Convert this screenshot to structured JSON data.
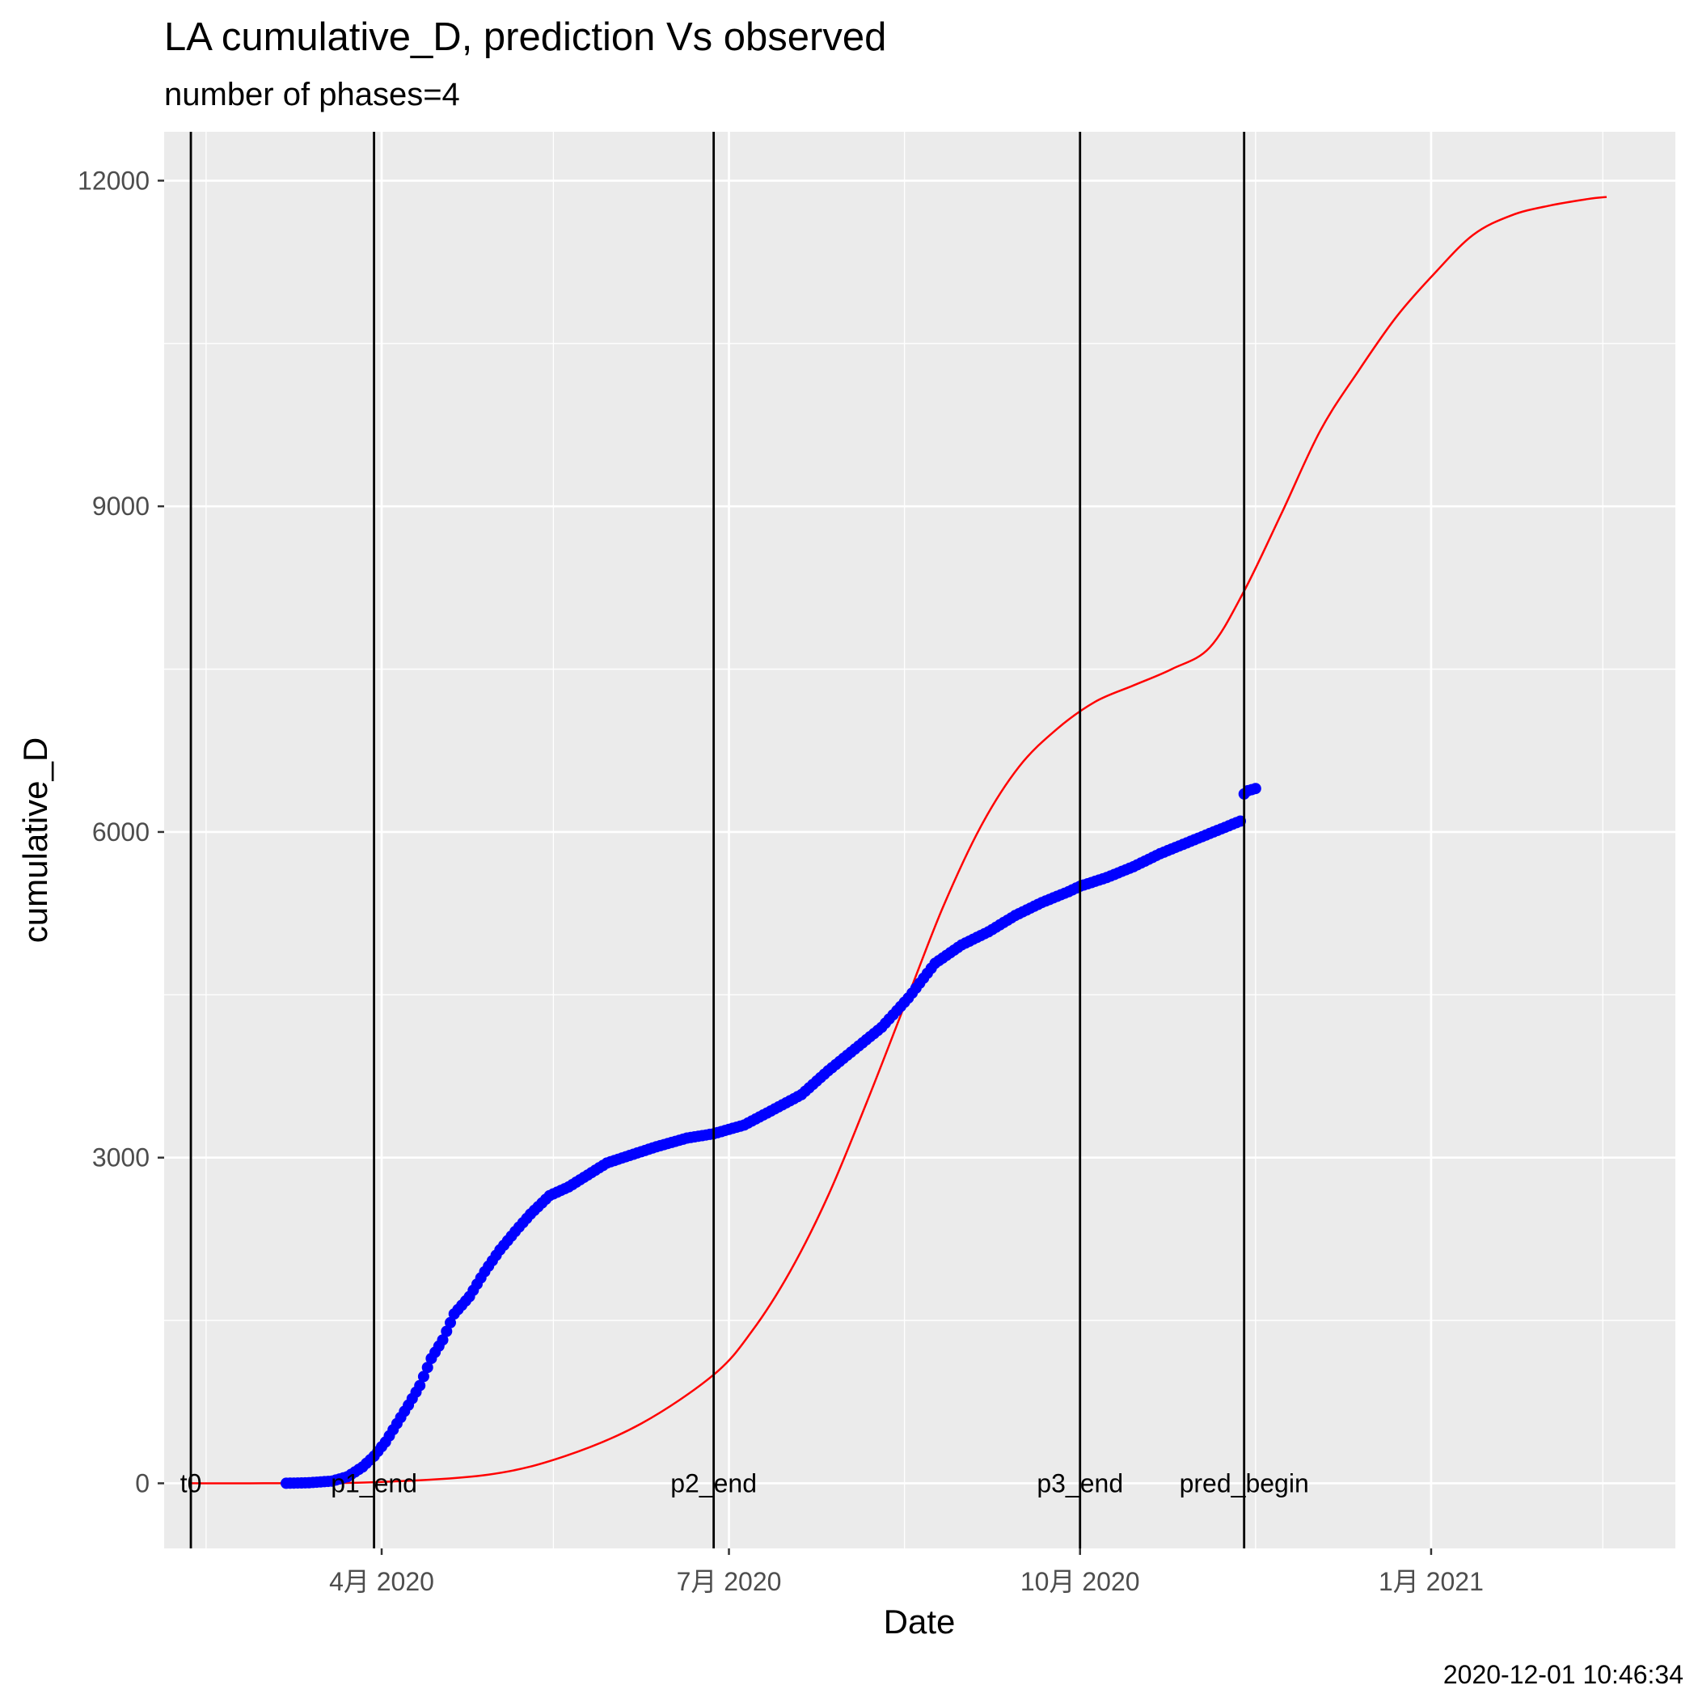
{
  "chart_data": {
    "type": "line",
    "title": "LA cumulative_D,  prediction Vs observed",
    "subtitle": "number of phases=4",
    "xlabel": "Date",
    "ylabel": "cumulative_D",
    "caption": "2020-12-01 10:46:34",
    "x_range": [
      "2020-02-04",
      "2021-03-06"
    ],
    "ylim": [
      -600,
      12450
    ],
    "y_ticks": [
      0,
      3000,
      6000,
      9000,
      12000
    ],
    "y_minor_ticks": [
      1500,
      4500,
      7500,
      10500
    ],
    "x_ticks": [
      {
        "date": "2020-04-01",
        "label": "4月 2020"
      },
      {
        "date": "2020-07-01",
        "label": "7月 2020"
      },
      {
        "date": "2020-10-01",
        "label": "10月 2020"
      },
      {
        "date": "2021-01-01",
        "label": "1月 2021"
      }
    ],
    "x_minor_ticks": [
      "2020-02-15",
      "2020-05-16",
      "2020-08-16",
      "2020-11-16",
      "2021-02-15"
    ],
    "grid": true,
    "colors": {
      "panel": "#ebebeb",
      "grid": "#ffffff",
      "observed": "#0000ff",
      "prediction": "#ff0000",
      "phase_line": "#000000"
    },
    "phase_markers": [
      {
        "label": "t0",
        "date": "2020-02-11"
      },
      {
        "label": "p1_end",
        "date": "2020-03-30"
      },
      {
        "label": "p2_end",
        "date": "2020-06-27"
      },
      {
        "label": "p3_end",
        "date": "2020-10-01"
      },
      {
        "label": "pred_begin",
        "date": "2020-11-13"
      }
    ],
    "series": [
      {
        "style": "line",
        "x": [
          "2020-02-11",
          "2020-03-01",
          "2020-03-30",
          "2020-04-29",
          "2020-05-19",
          "2020-06-08",
          "2020-06-27",
          "2020-07-07",
          "2020-07-17",
          "2020-07-27",
          "2020-08-06",
          "2020-08-16",
          "2020-08-26",
          "2020-09-05",
          "2020-09-15",
          "2020-09-25",
          "2020-10-05",
          "2020-10-15",
          "2020-10-25",
          "2020-11-04",
          "2020-11-13",
          "2020-11-23",
          "2020-12-03",
          "2020-12-13",
          "2020-12-23",
          "2021-01-02",
          "2021-01-12",
          "2021-01-22",
          "2021-02-01",
          "2021-02-11",
          "2021-02-16"
        ],
        "values": [
          0,
          0,
          10,
          80,
          250,
          550,
          1000,
          1400,
          1950,
          2650,
          3500,
          4400,
          5300,
          6050,
          6600,
          6950,
          7200,
          7350,
          7500,
          7700,
          8220,
          8950,
          9700,
          10250,
          10750,
          11150,
          11500,
          11680,
          11770,
          11830,
          11850
        ]
      },
      {
        "style": "points",
        "x": [
          "2020-03-07",
          "2020-03-13",
          "2020-03-19",
          "2020-03-23",
          "2020-03-27",
          "2020-03-30",
          "2020-04-02",
          "2020-04-05",
          "2020-04-08",
          "2020-04-11",
          "2020-04-14",
          "2020-04-17",
          "2020-04-20",
          "2020-04-24",
          "2020-04-28",
          "2020-05-02",
          "2020-05-06",
          "2020-05-10",
          "2020-05-15",
          "2020-05-20",
          "2020-05-25",
          "2020-05-30",
          "2020-06-05",
          "2020-06-12",
          "2020-06-20",
          "2020-06-27",
          "2020-07-05",
          "2020-07-12",
          "2020-07-20",
          "2020-07-27",
          "2020-08-03",
          "2020-08-10",
          "2020-08-17",
          "2020-08-24",
          "2020-08-31",
          "2020-09-07",
          "2020-09-14",
          "2020-09-21",
          "2020-09-28",
          "2020-10-01",
          "2020-10-08",
          "2020-10-15",
          "2020-10-22",
          "2020-10-29",
          "2020-11-05",
          "2020-11-12",
          "2020-11-13",
          "2020-11-14",
          "2020-11-16"
        ],
        "values": [
          0,
          5,
          20,
          60,
          150,
          250,
          380,
          550,
          720,
          900,
          1150,
          1320,
          1560,
          1720,
          1950,
          2150,
          2320,
          2480,
          2650,
          2730,
          2840,
          2950,
          3020,
          3100,
          3180,
          3220,
          3300,
          3430,
          3580,
          3800,
          4000,
          4200,
          4470,
          4790,
          4960,
          5080,
          5230,
          5350,
          5450,
          5500,
          5580,
          5680,
          5800,
          5900,
          6000,
          6100,
          6350,
          6380,
          6400
        ]
      }
    ]
  }
}
